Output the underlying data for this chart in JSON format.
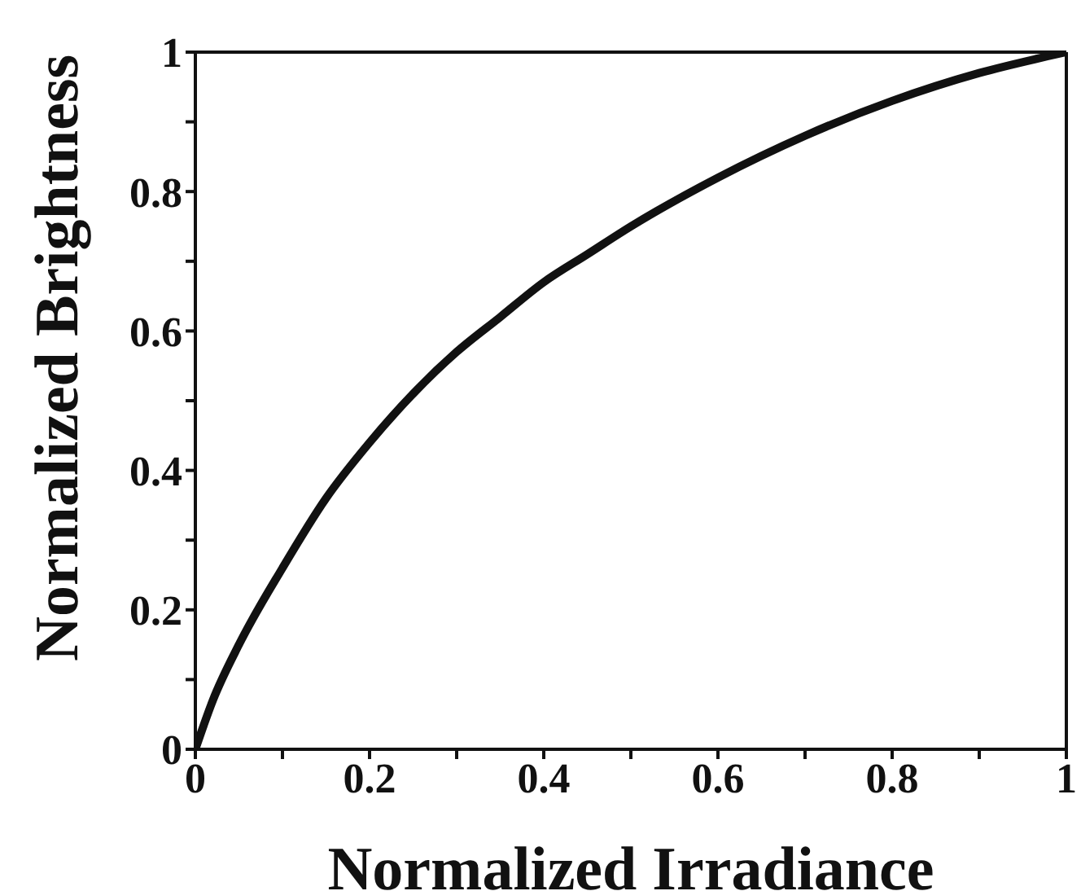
{
  "chart_data": {
    "type": "line",
    "xlabel": "Normalized Irradiance",
    "ylabel": "Normalized Brightness",
    "x": [
      0,
      0.02,
      0.05,
      0.1,
      0.15,
      0.2,
      0.25,
      0.3,
      0.35,
      0.4,
      0.45,
      0.5,
      0.6,
      0.7,
      0.8,
      0.9,
      1
    ],
    "series": [
      {
        "color": "#111111",
        "values": [
          0,
          0.07,
          0.15,
          0.26,
          0.36,
          0.44,
          0.51,
          0.57,
          0.62,
          0.67,
          0.71,
          0.75,
          0.82,
          0.88,
          0.93,
          0.97,
          1
        ]
      }
    ],
    "xlim": [
      0,
      1
    ],
    "ylim": [
      0,
      1
    ],
    "xticks": [
      0,
      {
        "value": 0.1,
        "label": null
      },
      0.2,
      {
        "value": 0.3,
        "label": null
      },
      0.4,
      {
        "value": 0.5,
        "label": null
      },
      0.6,
      {
        "value": 0.7,
        "label": null
      },
      0.8,
      {
        "value": 0.9,
        "label": null
      },
      1
    ],
    "yticks": [
      0,
      {
        "value": 0.1,
        "label": null
      },
      0.2,
      {
        "value": 0.3,
        "label": null
      },
      0.4,
      {
        "value": 0.5,
        "label": null
      },
      0.6,
      {
        "value": 0.7,
        "label": null
      },
      0.8,
      {
        "value": 0.9,
        "label": null
      },
      1
    ],
    "grid": false,
    "legend": false,
    "marker": "none",
    "line_style": "solid"
  }
}
